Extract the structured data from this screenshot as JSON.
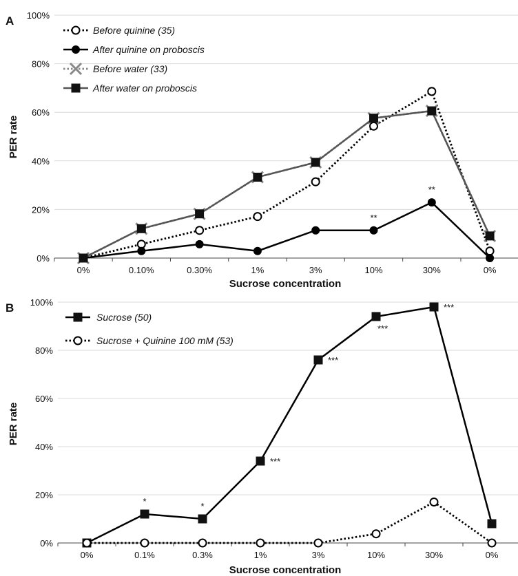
{
  "chart_data": [
    {
      "panel": "A",
      "type": "line",
      "categories": [
        "0%",
        "0.10%",
        "0.30%",
        "1%",
        "3%",
        "10%",
        "30%",
        "0%"
      ],
      "xlabel": "Sucrose concentration",
      "ylabel": "PER rate",
      "ylim": [
        0,
        100
      ],
      "yticks": [
        "0%",
        "20%",
        "40%",
        "60%",
        "80%",
        "100%"
      ],
      "legend_position": "top-left",
      "grid": "horizontal",
      "series": [
        {
          "name": "Before quinine (35)",
          "values": [
            0,
            5.7,
            11.4,
            17.1,
            31.4,
            54.3,
            68.6,
            2.9
          ],
          "style": "dotted",
          "marker": "open-circle",
          "color": "#000000"
        },
        {
          "name": "After quinine on proboscis",
          "values": [
            0,
            2.9,
            5.7,
            2.9,
            11.4,
            11.4,
            22.9,
            0
          ],
          "style": "solid",
          "marker": "filled-circle",
          "color": "#000000"
        },
        {
          "name": "Before water (33)",
          "values": [
            0,
            12.1,
            18.2,
            33.3,
            39.4,
            57.6,
            60.6,
            9.1
          ],
          "style": "dotted",
          "marker": "x",
          "color": "#888888"
        },
        {
          "name": "After water on proboscis",
          "values": [
            0,
            12.1,
            18.2,
            33.3,
            39.4,
            57.6,
            60.6,
            9.1
          ],
          "style": "solid",
          "marker": "filled-square",
          "color": "#555555"
        }
      ],
      "annotations": [
        {
          "text": "**",
          "x_index": 5,
          "y": 11.4
        },
        {
          "text": "**",
          "x_index": 6,
          "y": 22.9
        }
      ]
    },
    {
      "panel": "B",
      "type": "line",
      "categories": [
        "0%",
        "0.1%",
        "0.3%",
        "1%",
        "3%",
        "10%",
        "30%",
        "0%"
      ],
      "xlabel": "Sucrose concentration",
      "ylabel": "PER rate",
      "ylim": [
        0,
        100
      ],
      "yticks": [
        "0%",
        "20%",
        "40%",
        "60%",
        "80%",
        "100%"
      ],
      "legend_position": "top-left",
      "grid": "horizontal",
      "series": [
        {
          "name": "Sucrose (50)",
          "values": [
            0,
            12,
            10,
            34,
            76,
            94,
            98,
            8
          ],
          "style": "solid",
          "marker": "filled-square",
          "color": "#000000"
        },
        {
          "name": "Sucrose + Quinine 100 mM (53)",
          "values": [
            0,
            0,
            0,
            0,
            0,
            3.8,
            17,
            0
          ],
          "style": "dotted",
          "marker": "open-circle",
          "color": "#000000"
        }
      ],
      "annotations": [
        {
          "text": "*",
          "x_index": 1,
          "y": 12,
          "pos": "above"
        },
        {
          "text": "*",
          "x_index": 2,
          "y": 10,
          "pos": "above"
        },
        {
          "text": "***",
          "x_index": 3,
          "y": 34,
          "pos": "right"
        },
        {
          "text": "***",
          "x_index": 4,
          "y": 76,
          "pos": "right"
        },
        {
          "text": "***",
          "x_index": 5,
          "y": 94,
          "pos": "below-right"
        },
        {
          "text": "***",
          "x_index": 6,
          "y": 98,
          "pos": "right"
        }
      ]
    }
  ]
}
